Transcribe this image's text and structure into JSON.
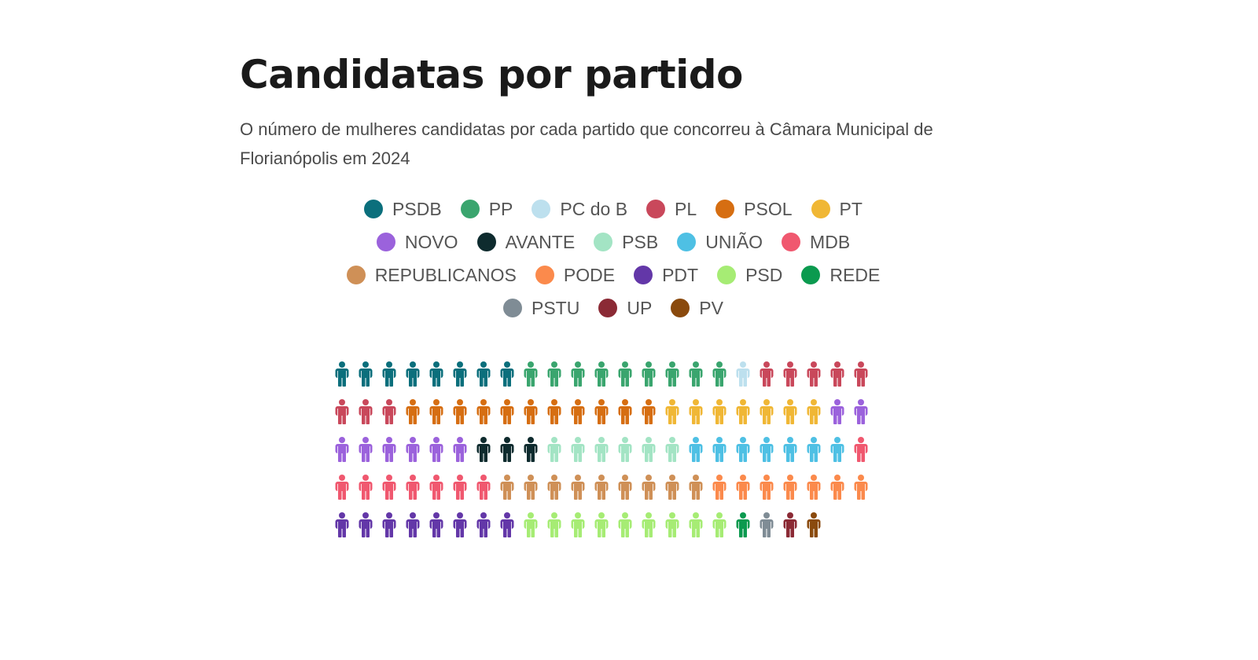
{
  "chart_data": {
    "type": "waffle",
    "title": "Candidatas por partido",
    "subtitle": "O número de mulheres candidatas por cada partido que concorreu à Câmara Municipal de Florianópolis em 2024",
    "columns": 23,
    "unit_icon": "person-icon",
    "series": [
      {
        "name": "PSDB",
        "value": 8,
        "color": "#0b6f7c"
      },
      {
        "name": "PP",
        "value": 9,
        "color": "#3aa56e"
      },
      {
        "name": "PC do B",
        "value": 1,
        "color": "#bde0ee"
      },
      {
        "name": "PL",
        "value": 8,
        "color": "#c9485b"
      },
      {
        "name": "PSOL",
        "value": 11,
        "color": "#d66e12"
      },
      {
        "name": "PT",
        "value": 7,
        "color": "#f0b735"
      },
      {
        "name": "NOVO",
        "value": 8,
        "color": "#9b62dc"
      },
      {
        "name": "AVANTE",
        "value": 3,
        "color": "#0e2b2e"
      },
      {
        "name": "PSB",
        "value": 6,
        "color": "#a3e4c4"
      },
      {
        "name": "UNIÃO",
        "value": 7,
        "color": "#4ec0e4"
      },
      {
        "name": "MDB",
        "value": 8,
        "color": "#f0586f"
      },
      {
        "name": "REPUBLICANOS",
        "value": 9,
        "color": "#cf9057"
      },
      {
        "name": "PODE",
        "value": 7,
        "color": "#fb8a4c"
      },
      {
        "name": "PDT",
        "value": 8,
        "color": "#6337a8"
      },
      {
        "name": "PSD",
        "value": 9,
        "color": "#a6ec74"
      },
      {
        "name": "REDE",
        "value": 1,
        "color": "#0b9a4f"
      },
      {
        "name": "PSTU",
        "value": 1,
        "color": "#7f8c95"
      },
      {
        "name": "UP",
        "value": 1,
        "color": "#8b2a35"
      },
      {
        "name": "PV",
        "value": 1,
        "color": "#8a4a0d"
      }
    ],
    "legend_rows": [
      [
        "PSDB",
        "PP",
        "PC do B",
        "PL",
        "PSOL",
        "PT"
      ],
      [
        "NOVO",
        "AVANTE",
        "PSB",
        "UNIÃO",
        "MDB"
      ],
      [
        "REPUBLICANOS",
        "PODE",
        "PDT",
        "PSD",
        "REDE"
      ],
      [
        "PSTU",
        "UP",
        "PV"
      ]
    ]
  }
}
